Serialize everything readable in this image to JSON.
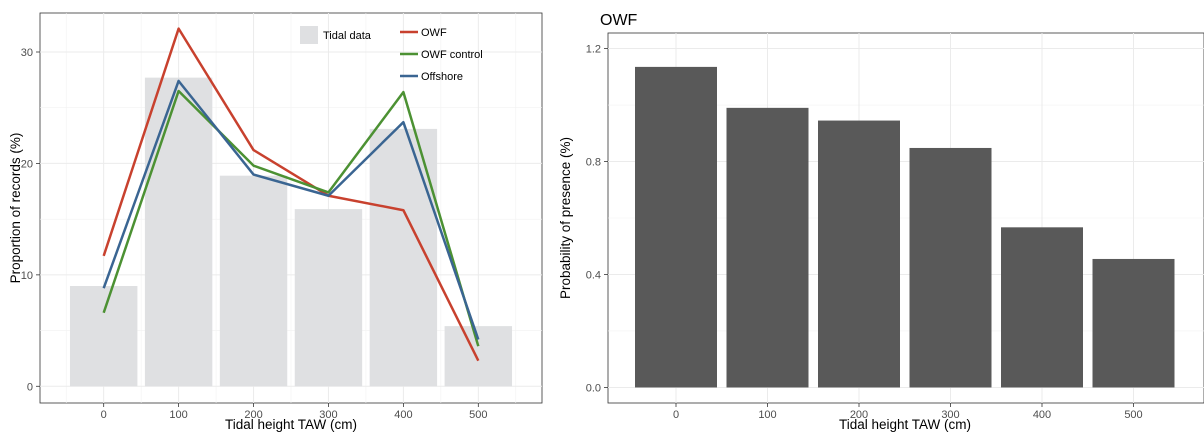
{
  "chart_data": [
    {
      "type": "bar+line",
      "title": "",
      "xlabel": "Tidal height TAW (cm)",
      "ylabel": "Proportion of records (%)",
      "x": [
        0,
        100,
        200,
        300,
        400,
        500
      ],
      "xlim": [
        -85,
        585
      ],
      "ylim": [
        -1.5,
        33.5
      ],
      "xticks": [
        "0",
        "100",
        "200",
        "300",
        "400",
        "500"
      ],
      "yticks": [
        "0",
        "10",
        "20",
        "30"
      ],
      "bars": {
        "name": "Tidal data",
        "color": "#dfe0e2",
        "values": [
          9.0,
          27.7,
          18.9,
          15.9,
          23.1,
          5.4
        ]
      },
      "series": [
        {
          "name": "OWF",
          "color": "#c8412e",
          "values": [
            11.7,
            32.1,
            21.2,
            17.1,
            15.8,
            2.3
          ]
        },
        {
          "name": "OWF control",
          "color": "#4c9133",
          "values": [
            6.6,
            26.5,
            19.8,
            17.4,
            26.4,
            3.6
          ]
        },
        {
          "name": "Offshore",
          "color": "#3a6592",
          "values": [
            8.8,
            27.4,
            19.0,
            17.1,
            23.7,
            4.2
          ]
        }
      ],
      "grid": true,
      "legend": "top-right"
    },
    {
      "type": "bar",
      "title": "OWF",
      "xlabel": "Tidal height TAW (cm)",
      "ylabel": "Probability of presence (%)",
      "categories": [
        "0",
        "100",
        "200",
        "300",
        "400",
        "500"
      ],
      "values": [
        1.135,
        0.99,
        0.945,
        0.848,
        0.567,
        0.455
      ],
      "ylim": [
        -0.055,
        1.255
      ],
      "yticks": [
        "0.0",
        "0.4",
        "0.8",
        "1.2"
      ],
      "color": "#595959",
      "grid": true
    }
  ]
}
